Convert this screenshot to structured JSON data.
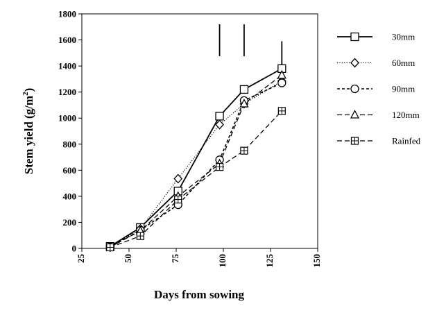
{
  "chart_data": {
    "type": "line",
    "title": "",
    "xlabel": "Days from sowing",
    "ylabel": "Stem yield",
    "ylabel_unit_base": "g/m",
    "ylabel_unit_exp": "2",
    "xlim": [
      25,
      150
    ],
    "ylim": [
      0,
      1800
    ],
    "xticks": [
      25,
      50,
      75,
      100,
      125,
      150
    ],
    "yticks": [
      0,
      200,
      400,
      600,
      800,
      1000,
      1200,
      1400,
      1600,
      1800
    ],
    "grid": false,
    "legend_position": "right",
    "series": [
      {
        "name": "30mm",
        "marker": "square",
        "dash": "solid",
        "x": [
          40,
          56,
          76,
          98,
          111,
          131
        ],
        "y": [
          15,
          160,
          440,
          1015,
          1220,
          1380
        ]
      },
      {
        "name": "60mm",
        "marker": "diamond",
        "dash": "dotted",
        "x": [
          40,
          56,
          76,
          98,
          111,
          131
        ],
        "y": [
          10,
          150,
          535,
          950,
          1110,
          1285
        ]
      },
      {
        "name": "90mm",
        "marker": "circle",
        "dash": "dashed",
        "x": [
          40,
          56,
          76,
          98,
          111,
          131
        ],
        "y": [
          10,
          140,
          335,
          680,
          1135,
          1270
        ]
      },
      {
        "name": "120mm",
        "marker": "triangle",
        "dash": "longdash",
        "x": [
          40,
          56,
          76,
          98,
          111,
          131
        ],
        "y": [
          10,
          135,
          400,
          650,
          1110,
          1330
        ]
      },
      {
        "name": "Rainfed",
        "marker": "squareplus",
        "dash": "longdash",
        "x": [
          40,
          56,
          76,
          98,
          111,
          131
        ],
        "y": [
          8,
          95,
          375,
          625,
          750,
          1055
        ]
      }
    ],
    "annotations": [
      {
        "type": "vertical-bar",
        "x": 98,
        "y_from": 1475,
        "y_to": 1720
      },
      {
        "type": "vertical-bar",
        "x": 111,
        "y_from": 1475,
        "y_to": 1720
      },
      {
        "type": "vertical-bar",
        "x": 131,
        "y_from": 1400,
        "y_to": 1590
      }
    ]
  }
}
